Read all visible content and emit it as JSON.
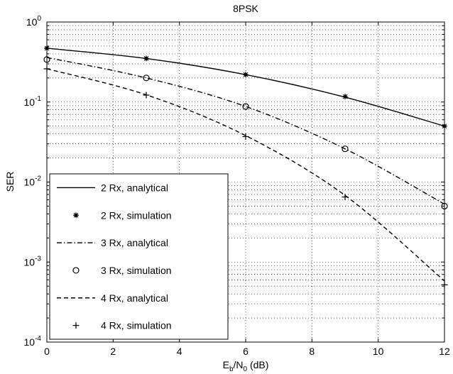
{
  "chart_data": {
    "type": "line",
    "title": "8PSK",
    "xlabel": {
      "main": "E",
      "sub1": "b",
      "slash": "/N",
      "sub2": "0",
      "unit": " (dB)"
    },
    "ylabel": "SER",
    "xlim": [
      0,
      12
    ],
    "ylim": [
      0.0001,
      1
    ],
    "yscale": "log",
    "grid": true,
    "x_ticks": [
      "0",
      "2",
      "4",
      "6",
      "8",
      "10",
      "12"
    ],
    "y_ticks": [
      {
        "base": "10",
        "exp": "-4"
      },
      {
        "base": "10",
        "exp": "-3"
      },
      {
        "base": "10",
        "exp": "-2"
      },
      {
        "base": "10",
        "exp": "-1"
      },
      {
        "base": "10",
        "exp": "0"
      }
    ],
    "legend_position": "bottom-left",
    "series": [
      {
        "name": "2 Rx, analytical",
        "style": "solid",
        "marker": "none",
        "x": [
          0,
          3,
          6,
          9,
          12
        ],
        "y": [
          0.47,
          0.35,
          0.22,
          0.115,
          0.05
        ]
      },
      {
        "name": "2 Rx, simulation",
        "style": "none",
        "marker": "star",
        "x": [
          0,
          3,
          6,
          9,
          12
        ],
        "y": [
          0.47,
          0.35,
          0.22,
          0.117,
          0.05
        ]
      },
      {
        "name": "3 Rx, analytical",
        "style": "dashdot",
        "marker": "none",
        "x": [
          0,
          3,
          6,
          9,
          12
        ],
        "y": [
          0.36,
          0.2,
          0.088,
          0.026,
          0.0053
        ]
      },
      {
        "name": "3 Rx, simulation",
        "style": "none",
        "marker": "circle",
        "x": [
          0,
          3,
          6,
          9,
          12
        ],
        "y": [
          0.34,
          0.2,
          0.088,
          0.026,
          0.005
        ]
      },
      {
        "name": "4 Rx, analytical",
        "style": "dashed",
        "marker": "none",
        "x": [
          0,
          3,
          6,
          9,
          12
        ],
        "y": [
          0.26,
          0.123,
          0.038,
          0.0068,
          0.00058
        ]
      },
      {
        "name": "4 Rx, simulation",
        "style": "none",
        "marker": "plus",
        "x": [
          0,
          3,
          6,
          9,
          12
        ],
        "y": [
          0.26,
          0.122,
          0.037,
          0.0065,
          0.00052
        ]
      }
    ]
  }
}
